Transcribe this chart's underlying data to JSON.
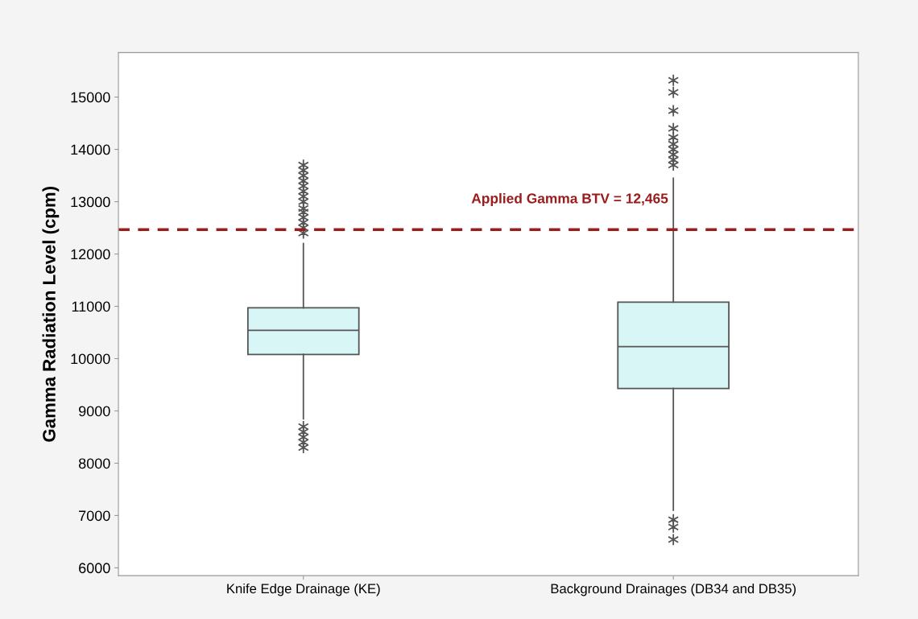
{
  "chart_data": {
    "type": "box",
    "ylabel": "Gamma Radiation Level (cpm)",
    "categories": [
      "Knife Edge Drainage (KE)",
      "Background Drainages (DB34 and DB35)"
    ],
    "boxes": [
      {
        "low": 8850,
        "q1": 10080,
        "median": 10540,
        "q3": 10970,
        "high": 12200,
        "outliers": [
          12400,
          12500,
          12600,
          12700,
          12800,
          12870,
          13000,
          13100,
          13200,
          13300,
          13400,
          13500,
          13600,
          13700,
          8700,
          8600,
          8500,
          8400,
          8300
        ]
      },
      {
        "low": 7100,
        "q1": 9430,
        "median": 10230,
        "q3": 11080,
        "high": 13450,
        "outliers": [
          13700,
          13800,
          13900,
          14000,
          14100,
          14230,
          14400,
          14740,
          15090,
          15320,
          6920,
          6780,
          6540
        ]
      }
    ],
    "color": "#d8f6f6",
    "marker": "star",
    "ylim": [
      5850,
      15850
    ],
    "yticks": [
      6000,
      7000,
      8000,
      9000,
      10000,
      11000,
      12000,
      13000,
      14000,
      15000
    ],
    "ref_lines": [
      {
        "axis": "y",
        "value": 12465,
        "label": "Applied Gamma BTV = 12,465",
        "color": "#9b1c1c",
        "line_style": "dashed"
      }
    ],
    "grid": false
  }
}
